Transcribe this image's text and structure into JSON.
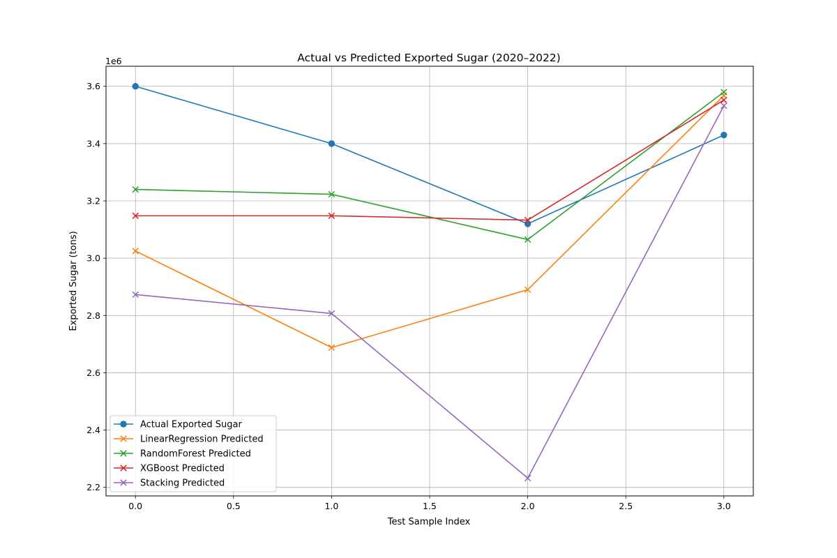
{
  "chart_data": {
    "type": "line",
    "title": "Actual vs Predicted Exported Sugar (2020–2022)",
    "xlabel": "Test Sample Index",
    "ylabel": "Exported Sugar (tons)",
    "y_offset_label": "1e6",
    "y_multiplier": 1000000,
    "xlim": [
      -0.15,
      3.15
    ],
    "ylim": [
      2170000,
      3670000
    ],
    "x_ticks": [
      0.0,
      0.5,
      1.0,
      1.5,
      2.0,
      2.5,
      3.0
    ],
    "x_tick_labels": [
      "0.0",
      "0.5",
      "1.0",
      "1.5",
      "2.0",
      "2.5",
      "3.0"
    ],
    "y_ticks": [
      2200000,
      2400000,
      2600000,
      2800000,
      3000000,
      3200000,
      3400000,
      3600000
    ],
    "y_tick_labels": [
      "2.2",
      "2.4",
      "2.6",
      "2.8",
      "3.0",
      "3.2",
      "3.4",
      "3.6"
    ],
    "grid": true,
    "legend_position": "lower-left",
    "x": [
      0,
      1,
      2,
      3
    ],
    "series": [
      {
        "name": "Actual Exported Sugar",
        "color": "#1f77b4",
        "marker": "circle",
        "values": [
          3600000,
          3400000,
          3120000,
          3430000
        ]
      },
      {
        "name": "LinearRegression Predicted",
        "color": "#ff7f0e",
        "marker": "x",
        "values": [
          3025000,
          2688000,
          2890000,
          3568000
        ]
      },
      {
        "name": "RandomForest Predicted",
        "color": "#2ca02c",
        "marker": "x",
        "values": [
          3240000,
          3223000,
          3065000,
          3580000
        ]
      },
      {
        "name": "XGBoost Predicted",
        "color": "#d62728",
        "marker": "x",
        "values": [
          3148000,
          3148000,
          3133000,
          3552000
        ]
      },
      {
        "name": "Stacking Predicted",
        "color": "#9467bd",
        "marker": "x",
        "values": [
          2873000,
          2807000,
          2232000,
          3532000
        ]
      }
    ]
  }
}
